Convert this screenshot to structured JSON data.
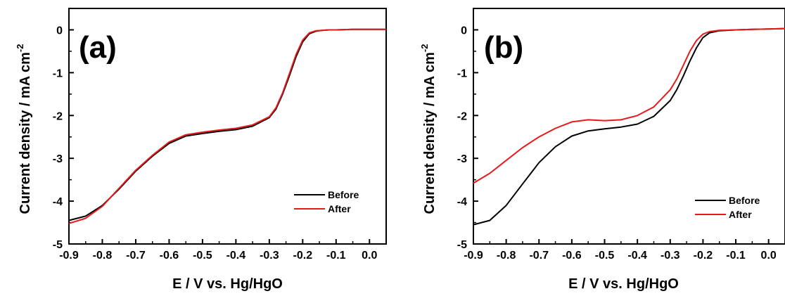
{
  "chart_data": [
    {
      "type": "line",
      "panel_label": "(a)",
      "xlabel": "E / V vs. Hg/HgO",
      "ylabel": "Current density / mA cm",
      "ylabel_sup": "-2",
      "xlim": [
        -0.9,
        0.05
      ],
      "ylim": [
        -5,
        0.5
      ],
      "xticks": [
        -0.9,
        -0.8,
        -0.7,
        -0.6,
        -0.5,
        -0.4,
        -0.3,
        -0.2,
        -0.1,
        0.0
      ],
      "xtick_labels": [
        "-0.9",
        "-0.8",
        "-0.7",
        "-0.6",
        "-0.5",
        "-0.4",
        "-0.3",
        "-0.2",
        "-0.1",
        "0.0"
      ],
      "yticks": [
        0,
        -1,
        -2,
        -3,
        -4,
        -5
      ],
      "ytick_labels": [
        "0",
        "-1",
        "-2",
        "-3",
        "-4",
        "-5"
      ],
      "legend_position": "lower-right",
      "series": [
        {
          "name": "Before",
          "color": "#000000",
          "x": [
            -0.9,
            -0.85,
            -0.8,
            -0.75,
            -0.7,
            -0.65,
            -0.6,
            -0.55,
            -0.5,
            -0.45,
            -0.4,
            -0.35,
            -0.3,
            -0.28,
            -0.26,
            -0.24,
            -0.22,
            -0.2,
            -0.18,
            -0.16,
            -0.14,
            -0.12,
            -0.1,
            -0.05,
            0.0,
            0.05
          ],
          "y": [
            -4.45,
            -4.35,
            -4.1,
            -3.72,
            -3.3,
            -2.95,
            -2.65,
            -2.48,
            -2.42,
            -2.37,
            -2.33,
            -2.25,
            -2.05,
            -1.85,
            -1.5,
            -1.08,
            -0.63,
            -0.28,
            -0.09,
            -0.03,
            -0.01,
            0.0,
            0.0,
            0.01,
            0.01,
            0.01
          ]
        },
        {
          "name": "After",
          "color": "#e8191c",
          "x": [
            -0.9,
            -0.85,
            -0.8,
            -0.75,
            -0.7,
            -0.65,
            -0.6,
            -0.55,
            -0.5,
            -0.45,
            -0.4,
            -0.35,
            -0.3,
            -0.28,
            -0.26,
            -0.24,
            -0.22,
            -0.2,
            -0.18,
            -0.16,
            -0.14,
            -0.12,
            -0.1,
            -0.05,
            0.0,
            0.05
          ],
          "y": [
            -4.52,
            -4.4,
            -4.12,
            -3.7,
            -3.28,
            -2.93,
            -2.62,
            -2.45,
            -2.39,
            -2.34,
            -2.3,
            -2.22,
            -2.03,
            -1.82,
            -1.47,
            -1.03,
            -0.58,
            -0.24,
            -0.07,
            -0.02,
            -0.01,
            0.0,
            0.0,
            0.01,
            0.01,
            0.01
          ]
        }
      ]
    },
    {
      "type": "line",
      "panel_label": "(b)",
      "xlabel": "E / V vs. Hg/HgO",
      "ylabel": "Current density / mA cm",
      "ylabel_sup": "-2",
      "xlim": [
        -0.9,
        0.05
      ],
      "ylim": [
        -5,
        0.5
      ],
      "xticks": [
        -0.9,
        -0.8,
        -0.7,
        -0.6,
        -0.5,
        -0.4,
        -0.3,
        -0.2,
        -0.1,
        0.0
      ],
      "xtick_labels": [
        "-0.9",
        "-0.8",
        "-0.7",
        "-0.6",
        "-0.5",
        "-0.4",
        "-0.3",
        "-0.2",
        "-0.1",
        "0.0"
      ],
      "yticks": [
        0,
        -1,
        -2,
        -3,
        -4,
        -5
      ],
      "ytick_labels": [
        "0",
        "-1",
        "-2",
        "-3",
        "-4",
        "-5"
      ],
      "legend_position": "lower-right",
      "series": [
        {
          "name": "Before",
          "color": "#000000",
          "x": [
            -0.9,
            -0.85,
            -0.8,
            -0.75,
            -0.7,
            -0.65,
            -0.6,
            -0.55,
            -0.5,
            -0.45,
            -0.4,
            -0.35,
            -0.3,
            -0.28,
            -0.26,
            -0.24,
            -0.22,
            -0.2,
            -0.18,
            -0.15,
            -0.1,
            -0.05,
            0.0,
            0.05
          ],
          "y": [
            -4.55,
            -4.45,
            -4.1,
            -3.6,
            -3.1,
            -2.73,
            -2.48,
            -2.36,
            -2.31,
            -2.27,
            -2.2,
            -2.02,
            -1.65,
            -1.4,
            -1.08,
            -0.73,
            -0.42,
            -0.18,
            -0.07,
            -0.02,
            0.0,
            0.01,
            0.02,
            0.03
          ]
        },
        {
          "name": "After",
          "color": "#e8191c",
          "x": [
            -0.9,
            -0.85,
            -0.8,
            -0.75,
            -0.7,
            -0.65,
            -0.6,
            -0.55,
            -0.5,
            -0.45,
            -0.4,
            -0.35,
            -0.3,
            -0.28,
            -0.26,
            -0.24,
            -0.22,
            -0.2,
            -0.18,
            -0.15,
            -0.1,
            -0.05,
            0.0,
            0.05
          ],
          "y": [
            -3.58,
            -3.35,
            -3.05,
            -2.75,
            -2.5,
            -2.3,
            -2.15,
            -2.1,
            -2.12,
            -2.1,
            -2.0,
            -1.8,
            -1.4,
            -1.15,
            -0.83,
            -0.5,
            -0.25,
            -0.1,
            -0.04,
            -0.01,
            0.0,
            0.01,
            0.02,
            0.03
          ]
        }
      ]
    }
  ]
}
